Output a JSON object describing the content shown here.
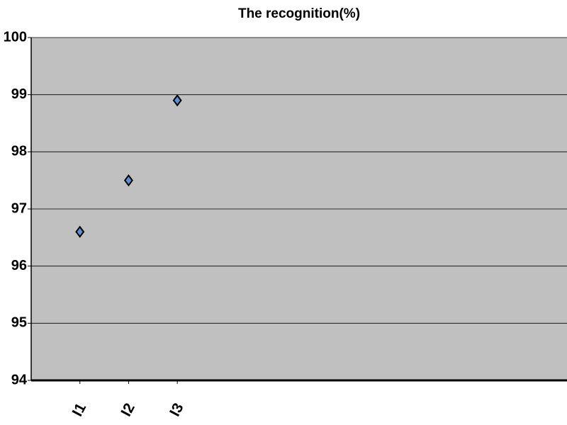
{
  "chart_data": {
    "type": "scatter",
    "title": "The recognition(%)",
    "x": [
      1,
      2,
      3
    ],
    "values": [
      96.6,
      97.5,
      98.9
    ],
    "color": "#5b8fd6",
    "xlim": [
      0,
      11
    ],
    "xticks": [
      {
        "value": 1,
        "label": "I1"
      },
      {
        "value": 2,
        "label": "I2"
      },
      {
        "value": 3,
        "label": "I3"
      }
    ],
    "ylim": [
      94,
      100
    ],
    "yticks": [
      94,
      95,
      96,
      97,
      98,
      99,
      100
    ],
    "grid": true
  }
}
